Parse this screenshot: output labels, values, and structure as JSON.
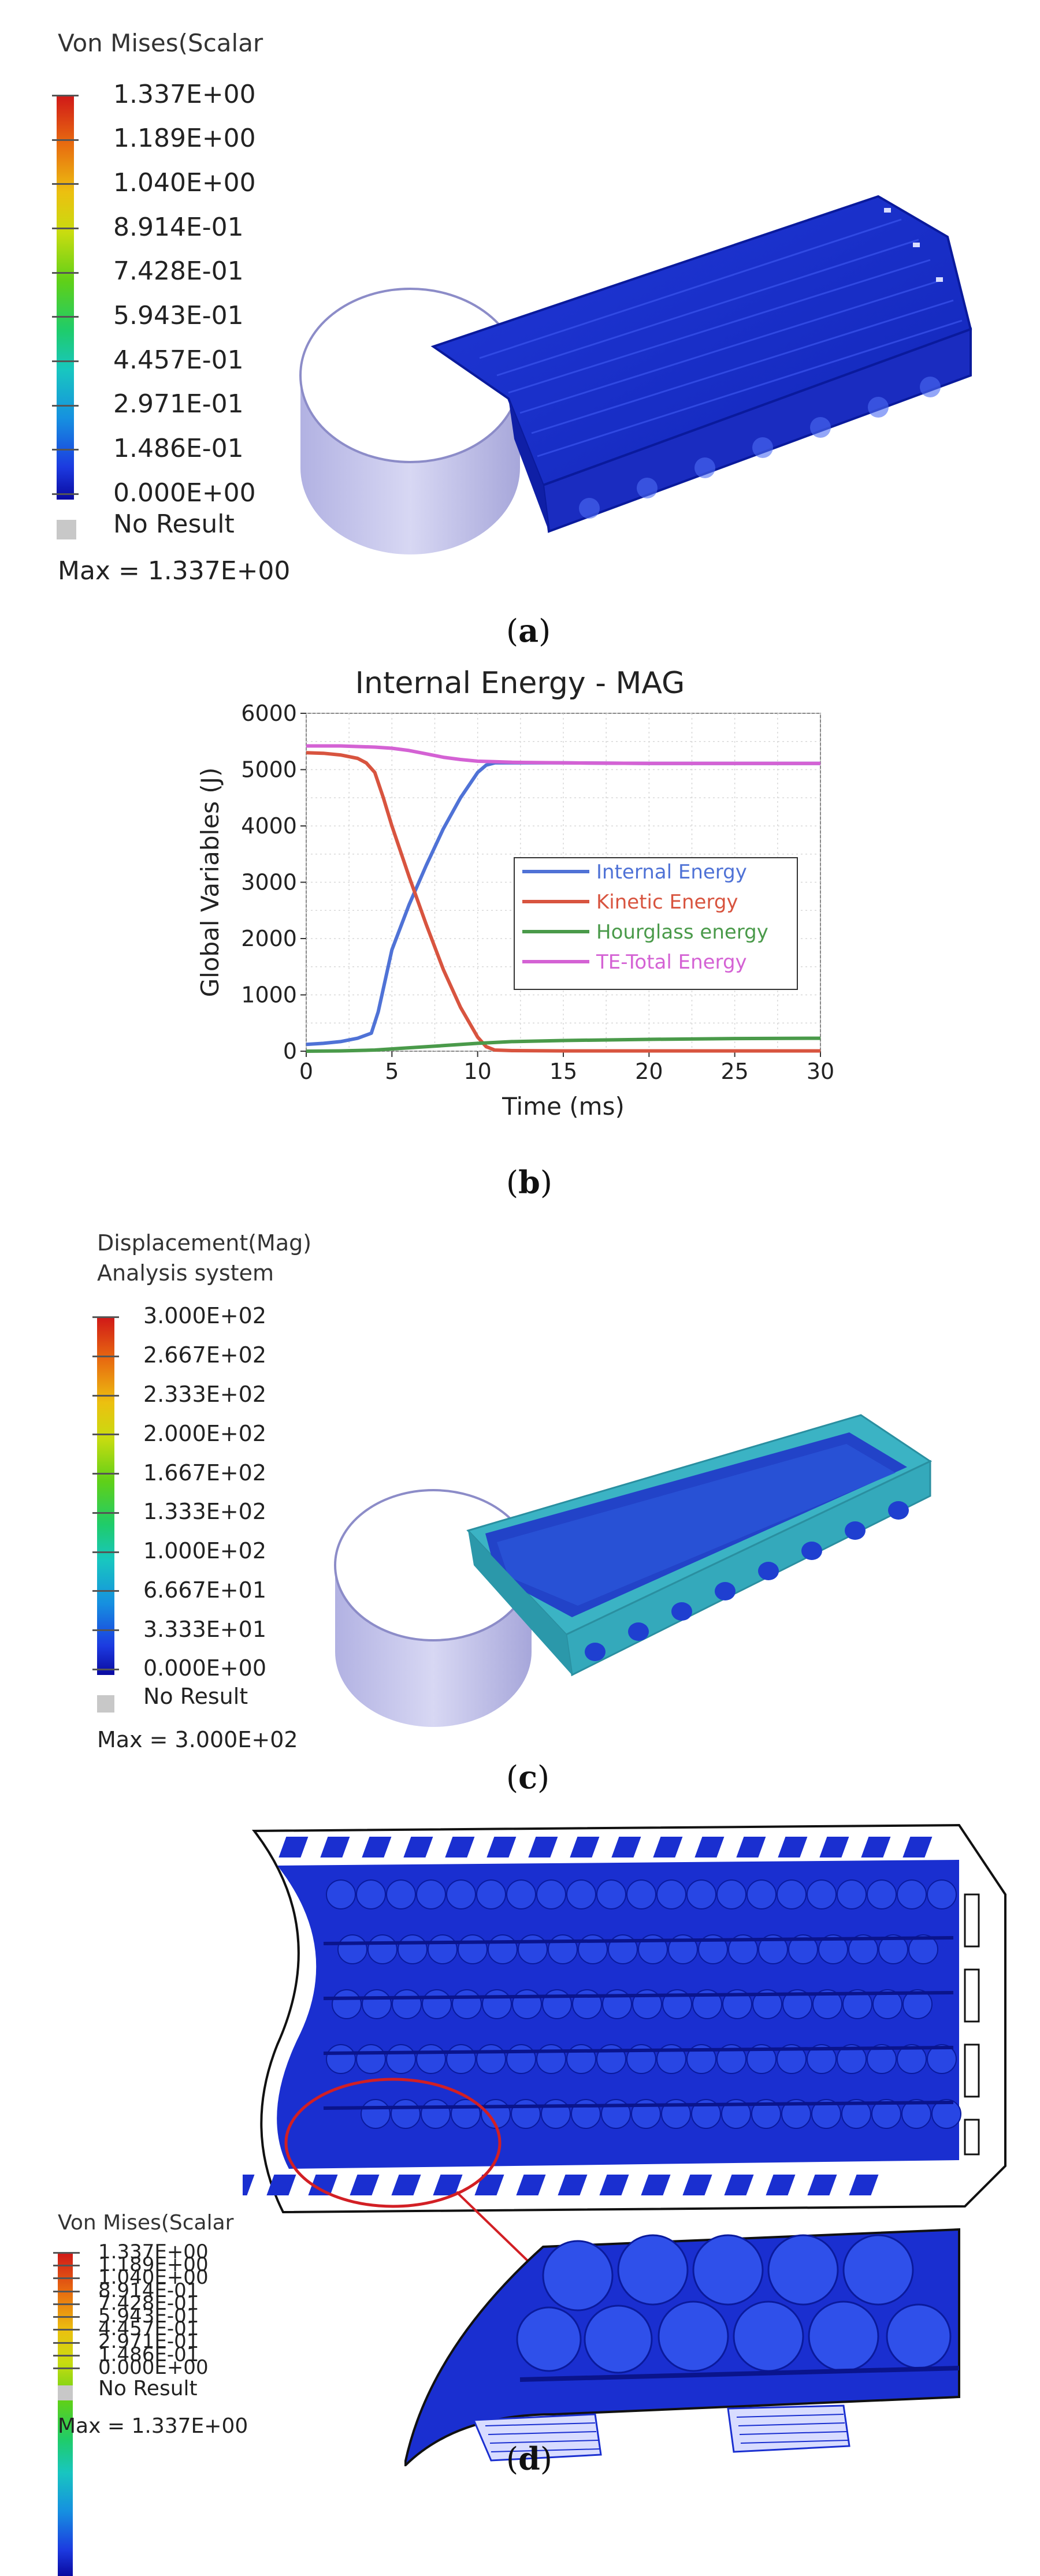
{
  "panel_a": {
    "legend_title": "Von Mises(Scalar",
    "levels": [
      "1.337E+00",
      "1.189E+00",
      "1.040E+00",
      "8.914E-01",
      "7.428E-01",
      "5.943E-01",
      "4.457E-01",
      "2.971E-01",
      "1.486E-01",
      "0.000E+00"
    ],
    "no_result": "No Result",
    "max_label": "Max =  1.337E+00",
    "caption_letter": "a"
  },
  "panel_b": {
    "caption_letter": "b"
  },
  "chart_data": {
    "type": "line",
    "title": "Internal Energy - MAG",
    "xlabel": "Time (ms)",
    "ylabel": "Global Variables (J)",
    "xlim": [
      0,
      30
    ],
    "ylim": [
      0,
      6000
    ],
    "xticks": [
      "0",
      "5",
      "10",
      "15",
      "20",
      "25",
      "30"
    ],
    "yticks": [
      "0",
      "1000",
      "2000",
      "3000",
      "4000",
      "5000",
      "6000"
    ],
    "grid": true,
    "legend_position": "center-right",
    "series": [
      {
        "name": "Internal Energy",
        "color": "#4f72d6",
        "x": [
          0,
          1,
          2,
          3,
          3.8,
          4.2,
          5,
          6,
          7,
          8,
          9,
          10,
          10.5,
          11,
          12,
          15,
          20,
          25,
          30
        ],
        "y": [
          120,
          140,
          170,
          230,
          320,
          700,
          1800,
          2600,
          3300,
          3950,
          4500,
          4950,
          5080,
          5120,
          5120,
          5120,
          5110,
          5110,
          5110
        ]
      },
      {
        "name": "Kinetic Energy",
        "color": "#d8543f",
        "x": [
          0,
          1,
          2,
          3,
          3.5,
          4,
          4.5,
          5,
          6,
          7,
          8,
          9,
          10,
          10.5,
          11,
          12,
          15,
          20,
          25,
          30
        ],
        "y": [
          5300,
          5290,
          5260,
          5200,
          5120,
          4950,
          4500,
          4000,
          3100,
          2250,
          1450,
          780,
          250,
          80,
          20,
          10,
          5,
          5,
          5,
          5
        ]
      },
      {
        "name": "Hourglass energy",
        "color": "#4a9a4a",
        "x": [
          0,
          2,
          4,
          6,
          8,
          10,
          12,
          15,
          20,
          25,
          30
        ],
        "y": [
          0,
          5,
          20,
          60,
          100,
          140,
          170,
          190,
          210,
          225,
          230
        ]
      },
      {
        "name": "TE-Total Energy",
        "color": "#d462d4",
        "x": [
          0,
          2,
          4,
          5,
          6,
          7,
          8,
          9,
          10,
          11,
          12,
          15,
          20,
          25,
          30
        ],
        "y": [
          5420,
          5420,
          5400,
          5380,
          5340,
          5280,
          5220,
          5180,
          5150,
          5140,
          5130,
          5120,
          5110,
          5110,
          5110
        ]
      }
    ]
  },
  "panel_c": {
    "legend_title_1": "Displacement(Mag)",
    "legend_title_2": "Analysis system",
    "levels": [
      "3.000E+02",
      "2.667E+02",
      "2.333E+02",
      "2.000E+02",
      "1.667E+02",
      "1.333E+02",
      "1.000E+02",
      "6.667E+01",
      "3.333E+01",
      "0.000E+00"
    ],
    "no_result": "No Result",
    "max_label": "Max =  3.000E+02",
    "caption_letter": "c"
  },
  "panel_d": {
    "legend_title": "Von Mises(Scalar",
    "levels": [
      "1.337E+00",
      "1.189E+00",
      "1.040E+00",
      "8.914E-01",
      "7.428E-01",
      "5.943E-01",
      "4.457E-01",
      "2.971E-01",
      "1.486E-01",
      "0.000E+00"
    ],
    "no_result": "No Result",
    "max_label": "Max = 1.337E+00",
    "caption_letter": "d"
  },
  "colors": {
    "mesh_blue": "#1a2fd0",
    "mesh_dark": "#0a148c",
    "impactor": "#b8b8e6",
    "cyan_frame": "#3bb3c4",
    "highlight_red": "#d21f24"
  }
}
